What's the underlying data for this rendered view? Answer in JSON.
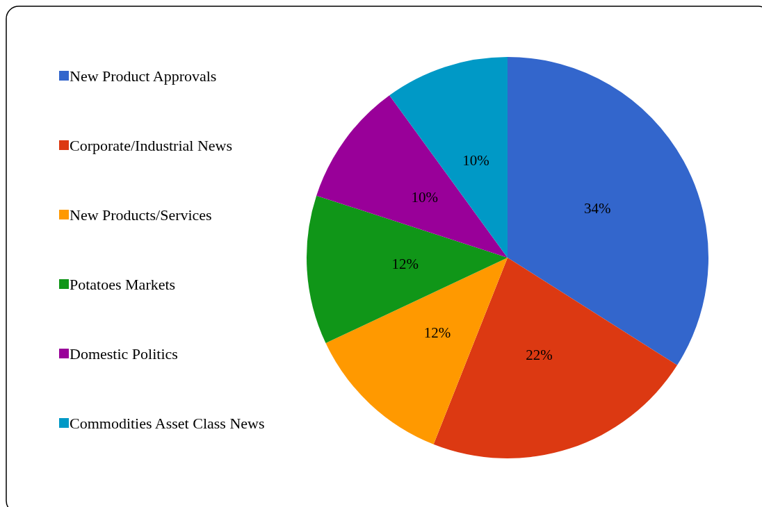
{
  "chart_data": {
    "type": "pie",
    "categories": [
      "New Product Approvals",
      "Corporate/Industrial News",
      "New Products/Services",
      "Potatoes Markets",
      "Domestic Politics",
      "Commodities Asset Class News"
    ],
    "values": [
      34,
      22,
      12,
      12,
      10,
      10
    ],
    "value_labels": [
      "34%",
      "22%",
      "12%",
      "12%",
      "10%",
      "10%"
    ],
    "colors": [
      "#3366cc",
      "#dc3912",
      "#ff9900",
      "#109618",
      "#990099",
      "#0099c6"
    ],
    "legend": "left"
  }
}
